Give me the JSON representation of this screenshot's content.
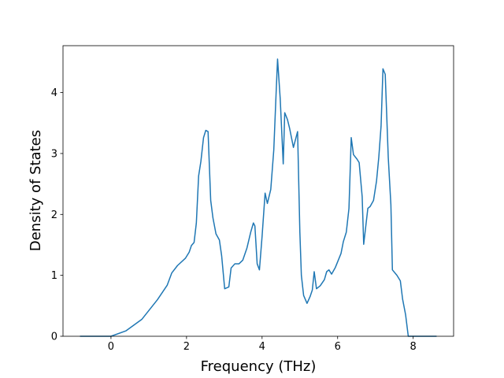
{
  "chart_data": {
    "type": "line",
    "xlabel": "Frequency (THz)",
    "ylabel": "Density of States",
    "x": [
      -0.82,
      0,
      0.4,
      0.82,
      1.23,
      1.49,
      1.61,
      1.76,
      1.97,
      2.07,
      2.13,
      2.2,
      2.26,
      2.32,
      2.38,
      2.45,
      2.51,
      2.57,
      2.64,
      2.7,
      2.78,
      2.87,
      2.93,
      3.01,
      3.12,
      3.18,
      3.28,
      3.39,
      3.49,
      3.6,
      3.7,
      3.77,
      3.81,
      3.87,
      3.93,
      4.0,
      4.08,
      4.14,
      4.23,
      4.31,
      4.37,
      4.41,
      4.48,
      4.56,
      4.6,
      4.67,
      4.73,
      4.83,
      4.94,
      5.0,
      5.04,
      5.1,
      5.19,
      5.27,
      5.33,
      5.38,
      5.44,
      5.54,
      5.65,
      5.71,
      5.77,
      5.84,
      5.94,
      6.09,
      6.15,
      6.23,
      6.3,
      6.36,
      6.42,
      6.51,
      6.57,
      6.65,
      6.69,
      6.8,
      6.86,
      6.95,
      7.03,
      7.09,
      7.15,
      7.2,
      7.26,
      7.34,
      7.41,
      7.45,
      7.57,
      7.66,
      7.72,
      7.8,
      7.87,
      8.62
    ],
    "values": [
      0,
      0,
      0.09,
      0.28,
      0.6,
      0.84,
      1.04,
      1.16,
      1.28,
      1.38,
      1.49,
      1.54,
      1.86,
      2.63,
      2.87,
      3.26,
      3.38,
      3.36,
      2.23,
      1.94,
      1.68,
      1.58,
      1.32,
      0.78,
      0.81,
      1.12,
      1.19,
      1.19,
      1.25,
      1.45,
      1.71,
      1.86,
      1.81,
      1.19,
      1.09,
      1.64,
      2.35,
      2.18,
      2.41,
      3.06,
      3.97,
      4.55,
      3.9,
      2.83,
      3.67,
      3.56,
      3.41,
      3.1,
      3.36,
      1.71,
      1.0,
      0.67,
      0.54,
      0.65,
      0.76,
      1.06,
      0.78,
      0.83,
      0.93,
      1.06,
      1.09,
      1.02,
      1.13,
      1.36,
      1.55,
      1.71,
      2.1,
      3.26,
      2.98,
      2.91,
      2.85,
      2.29,
      1.51,
      2.1,
      2.13,
      2.23,
      2.55,
      2.94,
      3.45,
      4.39,
      4.3,
      2.94,
      2.16,
      1.09,
      1.0,
      0.91,
      0.61,
      0.35,
      0,
      0
    ],
    "color": "#1f77b4",
    "xlim": [
      -1.27,
      9.07
    ],
    "xticks": [
      0,
      2,
      4,
      6,
      8
    ],
    "ylim": [
      0,
      4.77
    ],
    "yticks": [
      0,
      1,
      2,
      3,
      4
    ]
  }
}
